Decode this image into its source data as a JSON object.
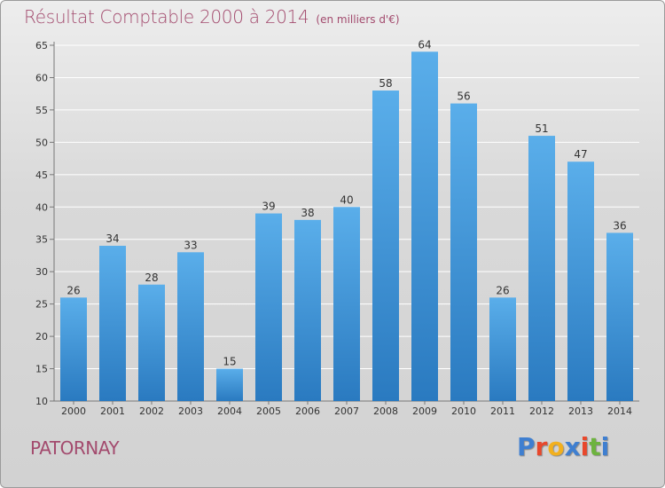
{
  "header": {
    "title": "Résultat Comptable 2000 à 2014",
    "unit": "(en milliers d'€)"
  },
  "footer": {
    "town": "PATORNAY",
    "logo": [
      "P",
      "r",
      "o",
      "x",
      "i",
      "t",
      "i"
    ],
    "logo_colors": [
      "#3f7fd0",
      "#e8482c",
      "#f2b01e",
      "#3f7fd0",
      "#e8482c",
      "#6db33f",
      "#3f7fd0"
    ]
  },
  "colors": {
    "title": "#a34b6e",
    "bar_top": "#5aaeea",
    "bar_bottom": "#2a7ac0",
    "grid": "#ffffff",
    "text": "#333333"
  },
  "chart_data": {
    "type": "bar",
    "title": "Résultat Comptable 2000 à 2014",
    "categories": [
      "2000",
      "2001",
      "2002",
      "2003",
      "2004",
      "2005",
      "2006",
      "2007",
      "2008",
      "2009",
      "2010",
      "2011",
      "2012",
      "2013",
      "2014"
    ],
    "values": [
      26,
      34,
      28,
      33,
      15,
      39,
      38,
      40,
      58,
      64,
      56,
      26,
      51,
      47,
      36
    ],
    "ylim": [
      10,
      65
    ],
    "yticks": [
      10,
      15,
      20,
      25,
      30,
      35,
      40,
      45,
      50,
      55,
      60,
      65
    ],
    "grid": true,
    "legend": "none"
  }
}
